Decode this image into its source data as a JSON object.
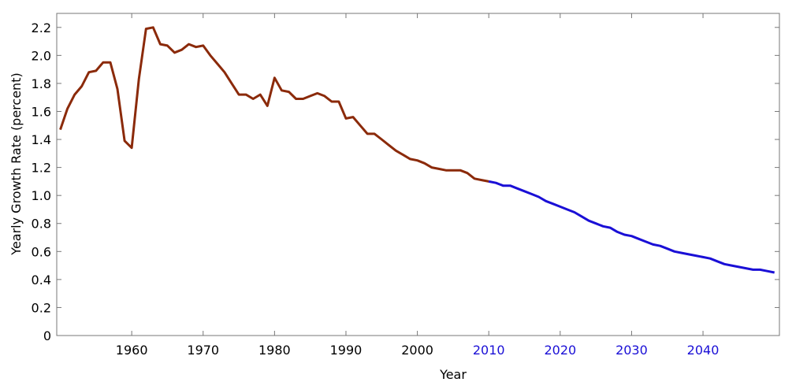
{
  "chart_data": {
    "type": "line",
    "title": "",
    "xlabel": "Year",
    "ylabel": "Yearly Growth Rate (percent)",
    "xlim": [
      1949.5,
      2050.7
    ],
    "ylim": [
      0,
      2.3
    ],
    "grid": false,
    "x_ticks": [
      1960,
      1970,
      1980,
      1990,
      2000,
      2010,
      2020,
      2030,
      2040
    ],
    "y_ticks": [
      "0",
      "0.2",
      "0.4",
      "0.6",
      "0.8",
      "1.0",
      "1.2",
      "1.4",
      "1.6",
      "1.8",
      "2.0",
      "2.2"
    ],
    "colors": {
      "historical": "#8b2a0a",
      "projected": "#1a0fd6",
      "projected_tick_labels": "#1a0fd6"
    },
    "series": [
      {
        "color": "#8b2a0a",
        "x": [
          1950,
          1951,
          1952,
          1953,
          1954,
          1955,
          1956,
          1957,
          1958,
          1959,
          1960,
          1961,
          1962,
          1963,
          1964,
          1965,
          1966,
          1967,
          1968,
          1969,
          1970,
          1971,
          1972,
          1973,
          1974,
          1975,
          1976,
          1977,
          1978,
          1979,
          1980,
          1981,
          1982,
          1983,
          1984,
          1985,
          1986,
          1987,
          1988,
          1989,
          1990,
          1991,
          1992,
          1993,
          1994,
          1995,
          1996,
          1997,
          1998,
          1999,
          2000,
          2001,
          2002,
          2003,
          2004,
          2005,
          2006,
          2007,
          2008,
          2009,
          2010
        ],
        "values": [
          1.47,
          1.62,
          1.72,
          1.78,
          1.88,
          1.89,
          1.95,
          1.95,
          1.76,
          1.39,
          1.34,
          1.83,
          2.19,
          2.2,
          2.08,
          2.07,
          2.02,
          2.04,
          2.08,
          2.06,
          2.07,
          2.0,
          1.94,
          1.88,
          1.8,
          1.72,
          1.72,
          1.69,
          1.72,
          1.64,
          1.84,
          1.75,
          1.74,
          1.69,
          1.69,
          1.71,
          1.73,
          1.71,
          1.67,
          1.67,
          1.55,
          1.56,
          1.5,
          1.44,
          1.44,
          1.4,
          1.36,
          1.32,
          1.29,
          1.26,
          1.25,
          1.23,
          1.2,
          1.19,
          1.18,
          1.18,
          1.18,
          1.16,
          1.12,
          1.11,
          1.1
        ]
      },
      {
        "color": "#1a0fd6",
        "x": [
          2010,
          2011,
          2012,
          2013,
          2014,
          2015,
          2016,
          2017,
          2018,
          2019,
          2020,
          2021,
          2022,
          2023,
          2024,
          2025,
          2026,
          2027,
          2028,
          2029,
          2030,
          2031,
          2032,
          2033,
          2034,
          2035,
          2036,
          2037,
          2038,
          2039,
          2040,
          2041,
          2042,
          2043,
          2044,
          2045,
          2046,
          2047,
          2048,
          2049,
          2050
        ],
        "values": [
          1.1,
          1.09,
          1.07,
          1.07,
          1.05,
          1.03,
          1.01,
          0.99,
          0.96,
          0.94,
          0.92,
          0.9,
          0.88,
          0.85,
          0.82,
          0.8,
          0.78,
          0.77,
          0.74,
          0.72,
          0.71,
          0.69,
          0.67,
          0.65,
          0.64,
          0.62,
          0.6,
          0.59,
          0.58,
          0.57,
          0.56,
          0.55,
          0.53,
          0.51,
          0.5,
          0.49,
          0.48,
          0.47,
          0.47,
          0.46,
          0.45
        ]
      }
    ]
  }
}
